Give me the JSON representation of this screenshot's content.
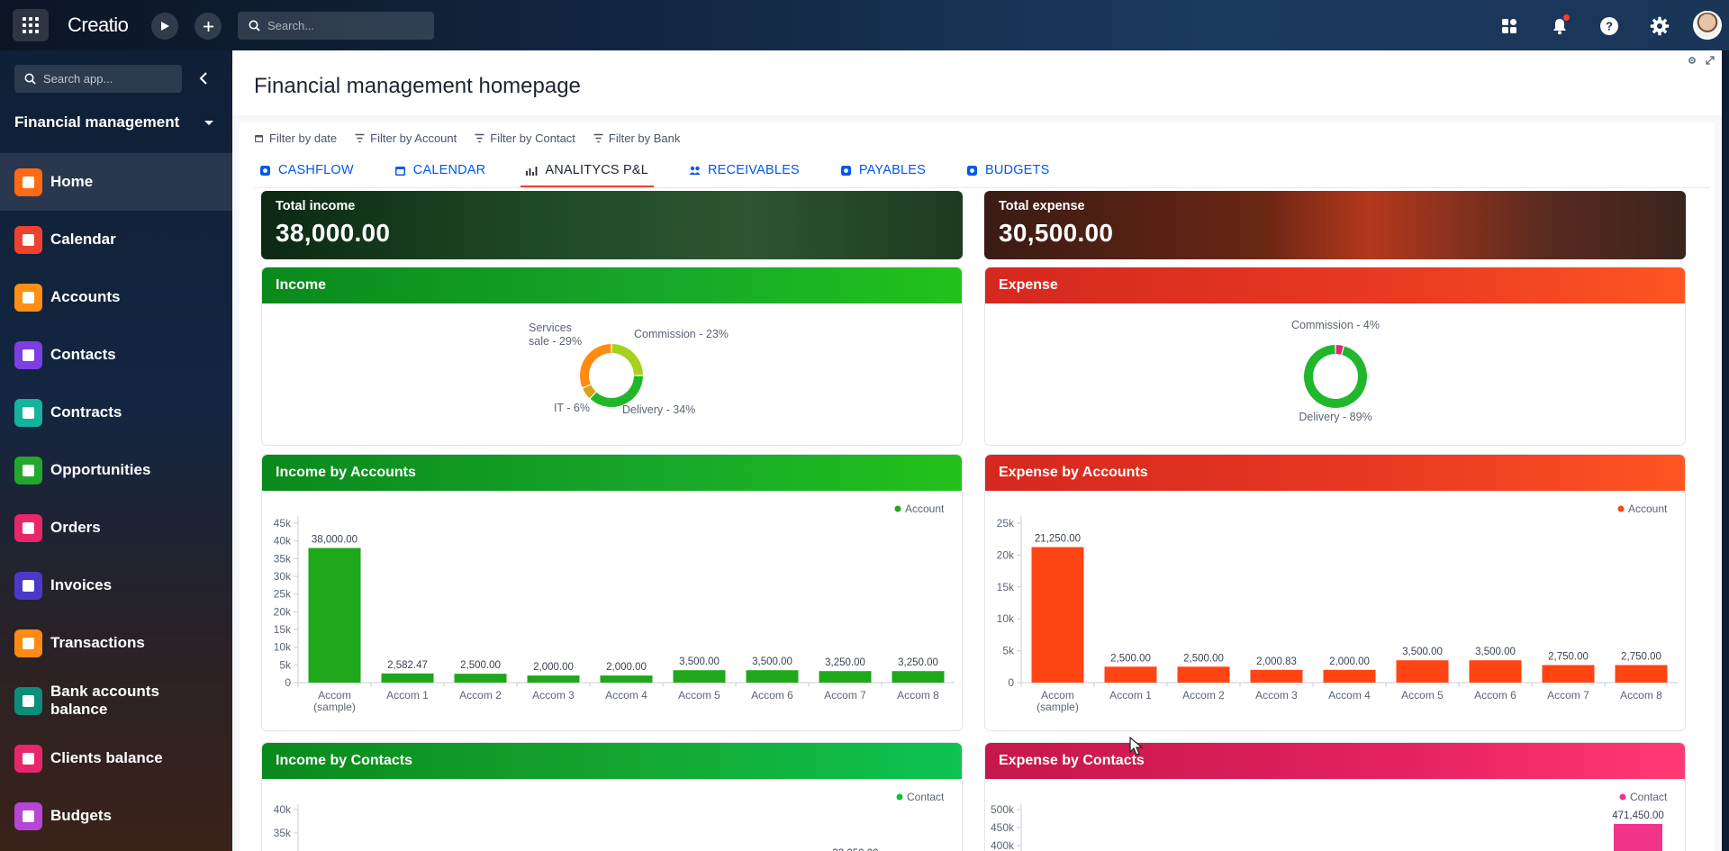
{
  "topbar": {
    "logo": "Creatio",
    "search_placeholder": "Search..."
  },
  "sidebar": {
    "search_placeholder": "Search app...",
    "app_name": "Financial management",
    "items": [
      {
        "label": "Home",
        "color": "#ff6a13",
        "active": true
      },
      {
        "label": "Calendar",
        "color": "#ef4130"
      },
      {
        "label": "Accounts",
        "color": "#ff8f14"
      },
      {
        "label": "Contacts",
        "color": "#7b3fe4"
      },
      {
        "label": "Contracts",
        "color": "#15b39e"
      },
      {
        "label": "Opportunities",
        "color": "#22a82c"
      },
      {
        "label": "Orders",
        "color": "#e8276a"
      },
      {
        "label": "Invoices",
        "color": "#4b3ac8"
      },
      {
        "label": "Transactions",
        "color": "#ff8a14"
      },
      {
        "label": "Bank accounts balance",
        "color": "#0b8e7a"
      },
      {
        "label": "Clients balance",
        "color": "#e8276a"
      },
      {
        "label": "Budgets",
        "color": "#b745d6"
      }
    ]
  },
  "page": {
    "title": "Financial management homepage",
    "filters": [
      "Filter by date",
      "Filter by Account",
      "Filter by Contact",
      "Filter by Bank"
    ],
    "tabs": [
      "CASHFLOW",
      "CALENDAR",
      "ANALITYCS P&L",
      "RECEIVABLES",
      "PAYABLES",
      "BUDGETS"
    ]
  },
  "kpis": {
    "income": {
      "label": "Total income",
      "value": "38,000.00"
    },
    "expense": {
      "label": "Total expense",
      "value": "30,500.00"
    }
  },
  "widgets": {
    "income_pie_title": "Income",
    "expense_pie_title": "Expense",
    "income_accounts_title": "Income by Accounts",
    "expense_accounts_title": "Expense by Accounts",
    "income_contacts_title": "Income by Contacts",
    "expense_contacts_title": "Expense by Contacts"
  },
  "colors": {
    "income_bar": "#1ea81a",
    "expense_bar": "#ff4514",
    "income_contact_bar": "#0cc140",
    "expense_contact_bar": "#f0348a"
  },
  "chart_data": [
    {
      "type": "pie",
      "title": "Income",
      "slices": [
        {
          "label": "Commission - 23%",
          "value": 23,
          "color": "#a6d11c"
        },
        {
          "label": "Delivery - 34%",
          "value": 34,
          "color": "#21b72a"
        },
        {
          "label": "IT - 6%",
          "value": 6,
          "color": "#d8a315"
        },
        {
          "label": "Services sale - 29%",
          "value": 29,
          "color": "#ff8a14"
        }
      ]
    },
    {
      "type": "pie",
      "title": "Expense",
      "slices": [
        {
          "label": "Commission - 4%",
          "value": 4,
          "color": "#e8276a"
        },
        {
          "label": "Delivery - 89%",
          "value": 89,
          "color": "#21b72a"
        }
      ]
    },
    {
      "type": "bar",
      "title": "Income by Accounts",
      "legend": "Account",
      "categories": [
        "Accom (sample)",
        "Accom 1",
        "Accom 2",
        "Accom 3",
        "Accom 4",
        "Accom 5",
        "Accom 6",
        "Accom 7",
        "Accom 8"
      ],
      "values": [
        38000,
        2582.47,
        2500,
        2000,
        2000,
        3500,
        3500,
        3250,
        3250
      ],
      "labels": [
        "38,000.00",
        "2,582.47",
        "2,500.00",
        "2,000.00",
        "2,000.00",
        "3,500.00",
        "3,500.00",
        "3,250.00",
        "3,250.00"
      ],
      "ylim": [
        0,
        45000
      ],
      "yticks": [
        "0",
        "5k",
        "10k",
        "15k",
        "20k",
        "25k",
        "30k",
        "35k",
        "40k",
        "45k"
      ]
    },
    {
      "type": "bar",
      "title": "Expense by Accounts",
      "legend": "Account",
      "categories": [
        "Accom (sample)",
        "Accom 1",
        "Accom 2",
        "Accom 3",
        "Accom 4",
        "Accom 5",
        "Accom 6",
        "Accom 7",
        "Accom 8"
      ],
      "values": [
        21250,
        2500,
        2500,
        2000.83,
        2000,
        3500,
        3500,
        2750,
        2750
      ],
      "labels": [
        "21,250.00",
        "2,500.00",
        "2,500.00",
        "2,000.83",
        "2,000.00",
        "3,500.00",
        "3,500.00",
        "2,750.00",
        "2,750.00"
      ],
      "ylim": [
        0,
        25000
      ],
      "yticks": [
        "0",
        "5k",
        "10k",
        "15k",
        "20k",
        "25k"
      ]
    },
    {
      "type": "bar",
      "title": "Income by Contacts",
      "legend": "Contact",
      "visible_yticks": [
        "35k",
        "40k"
      ],
      "visible_bar_label": "33,250.00",
      "visible_bar_value": 33250
    },
    {
      "type": "bar",
      "title": "Expense by Contacts",
      "legend": "Contact",
      "visible_yticks": [
        "400k",
        "450k",
        "500k"
      ],
      "visible_bar_label": "471,450.00",
      "visible_bar_value": 471450
    }
  ]
}
